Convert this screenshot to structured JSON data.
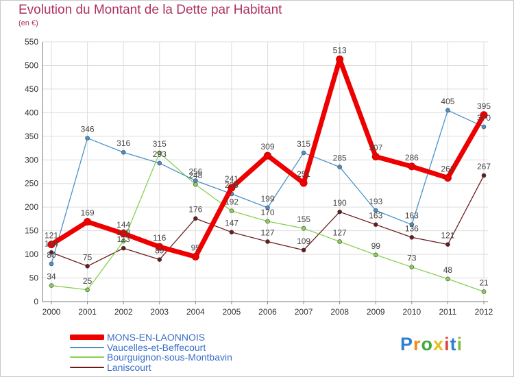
{
  "page": {
    "title": "Evolution du Montant de la Dette par Habitant",
    "subtitle": "(en €)"
  },
  "brand": "Proxiti",
  "chart_data": {
    "type": "line",
    "title": "Evolution du Montant de la Dette par Habitant",
    "subtitle": "(en €)",
    "xlabel": "",
    "ylabel": "",
    "x": [
      "2000",
      "2001",
      "2002",
      "2003",
      "2004",
      "2005",
      "2006",
      "2007",
      "2008",
      "2009",
      "2010",
      "2011",
      "2012"
    ],
    "ylim": [
      0,
      550
    ],
    "yticks": [
      0,
      50,
      100,
      150,
      200,
      250,
      300,
      350,
      400,
      450,
      500,
      550
    ],
    "grid": true,
    "legend_position": "bottom",
    "series": [
      {
        "name": "MONS-EN-LAONNOIS",
        "color": "#ee0000",
        "values": [
          121,
          169,
          144,
          116,
          95,
          241,
          309,
          251,
          513,
          307,
          286,
          262,
          395
        ]
      },
      {
        "name": "Vaucelles-et-Beffecourt",
        "color": "#4a90c8",
        "values": [
          80,
          346,
          316,
          293,
          256,
          228,
          199,
          315,
          285,
          193,
          163,
          405,
          370
        ]
      },
      {
        "name": "Bourguignon-sous-Montbavin",
        "color": "#88d050",
        "values": [
          34,
          25,
          128,
          315,
          248,
          192,
          170,
          155,
          127,
          99,
          73,
          48,
          21
        ]
      },
      {
        "name": "Laniscourt",
        "color": "#6b1a1a",
        "values": [
          104,
          75,
          113,
          89,
          176,
          147,
          127,
          109,
          190,
          163,
          136,
          121,
          267
        ]
      }
    ]
  }
}
